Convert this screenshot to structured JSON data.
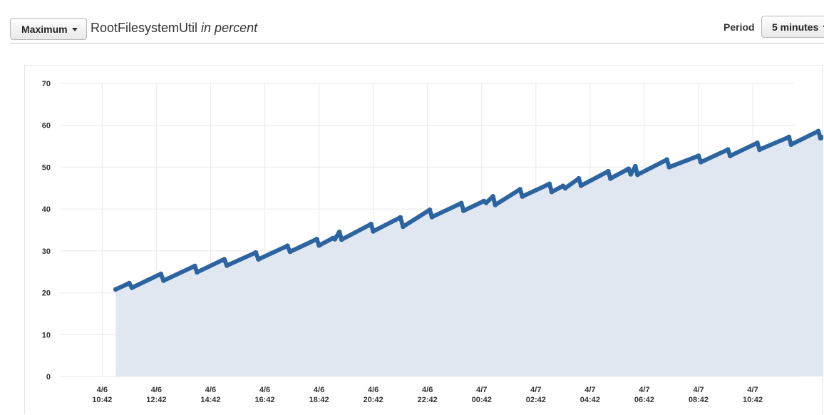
{
  "header": {
    "statistic": "Maximum",
    "metric_name": "RootFilesystemUtil",
    "unit_text": "in percent",
    "period_label": "Period",
    "period_value": "5 minutes"
  },
  "colors": {
    "line": "#2b64a0",
    "area": "#e1e7f1",
    "grid": "#e8e8e8"
  },
  "chart_data": {
    "type": "area",
    "title": "",
    "xlabel": "",
    "ylabel": "",
    "ylim": [
      0,
      70
    ],
    "yticks": [
      0,
      10,
      20,
      30,
      40,
      50,
      60,
      70
    ],
    "xlim": [
      "4/6 09:10",
      "4/7 12:15"
    ],
    "xticks": [
      {
        "date": "4/6",
        "time": "10:42"
      },
      {
        "date": "4/6",
        "time": "12:42"
      },
      {
        "date": "4/6",
        "time": "14:42"
      },
      {
        "date": "4/6",
        "time": "16:42"
      },
      {
        "date": "4/6",
        "time": "18:42"
      },
      {
        "date": "4/6",
        "time": "20:42"
      },
      {
        "date": "4/6",
        "time": "22:42"
      },
      {
        "date": "4/7",
        "time": "00:42"
      },
      {
        "date": "4/7",
        "time": "02:42"
      },
      {
        "date": "4/7",
        "time": "04:42"
      },
      {
        "date": "4/7",
        "time": "06:42"
      },
      {
        "date": "4/7",
        "time": "08:42"
      },
      {
        "date": "4/7",
        "time": "10:42"
      }
    ],
    "grid": true,
    "series": [
      {
        "name": "",
        "points": [
          [
            "4/6 11:12",
            20.8
          ],
          [
            "4/6 11:42",
            22.3
          ],
          [
            "4/6 11:48",
            21.2
          ],
          [
            "4/6 12:52",
            24.5
          ],
          [
            "4/6 12:58",
            22.9
          ],
          [
            "4/6 14:07",
            26.4
          ],
          [
            "4/6 14:12",
            24.9
          ],
          [
            "4/6 15:12",
            28.0
          ],
          [
            "4/6 15:18",
            26.5
          ],
          [
            "4/6 16:22",
            29.6
          ],
          [
            "4/6 16:28",
            28.0
          ],
          [
            "4/6 17:32",
            31.2
          ],
          [
            "4/6 17:38",
            29.8
          ],
          [
            "4/6 18:37",
            32.8
          ],
          [
            "4/6 18:42",
            31.3
          ],
          [
            "4/6 19:12",
            33.0
          ],
          [
            "4/6 19:17",
            32.8
          ],
          [
            "4/6 19:27",
            34.5
          ],
          [
            "4/6 19:32",
            32.7
          ],
          [
            "4/6 20:37",
            36.4
          ],
          [
            "4/6 20:42",
            34.7
          ],
          [
            "4/6 21:42",
            38.0
          ],
          [
            "4/6 21:48",
            35.8
          ],
          [
            "4/6 22:47",
            39.8
          ],
          [
            "4/6 22:52",
            38.1
          ],
          [
            "4/6 23:57",
            41.4
          ],
          [
            "4/7 00:02",
            39.6
          ],
          [
            "4/7 00:47",
            41.9
          ],
          [
            "4/7 00:52",
            41.5
          ],
          [
            "4/7 01:07",
            43.0
          ],
          [
            "4/7 01:12",
            41.0
          ],
          [
            "4/7 02:07",
            44.7
          ],
          [
            "4/7 02:12",
            43.0
          ],
          [
            "4/7 03:12",
            46.0
          ],
          [
            "4/7 03:17",
            44.1
          ],
          [
            "4/7 03:42",
            45.5
          ],
          [
            "4/7 03:47",
            45.0
          ],
          [
            "4/7 04:17",
            47.3
          ],
          [
            "4/7 04:22",
            45.6
          ],
          [
            "4/7 05:22",
            49.0
          ],
          [
            "4/7 05:27",
            47.3
          ],
          [
            "4/7 06:07",
            49.6
          ],
          [
            "4/7 06:12",
            48.3
          ],
          [
            "4/7 06:22",
            50.2
          ],
          [
            "4/7 06:27",
            48.2
          ],
          [
            "4/7 07:32",
            51.8
          ],
          [
            "4/7 07:37",
            50.0
          ],
          [
            "4/7 08:42",
            52.7
          ],
          [
            "4/7 08:47",
            51.2
          ],
          [
            "4/7 09:47",
            54.2
          ],
          [
            "4/7 09:52",
            52.7
          ],
          [
            "4/7 10:52",
            55.8
          ],
          [
            "4/7 10:57",
            54.2
          ],
          [
            "4/7 12:02",
            57.2
          ],
          [
            "4/7 12:07",
            55.4
          ],
          [
            "4/7 13:07",
            58.6
          ],
          [
            "4/7 13:12",
            56.9
          ],
          [
            "4/7 14:12",
            60.0
          ],
          [
            "4/7 14:17",
            58.6
          ]
        ]
      }
    ]
  }
}
